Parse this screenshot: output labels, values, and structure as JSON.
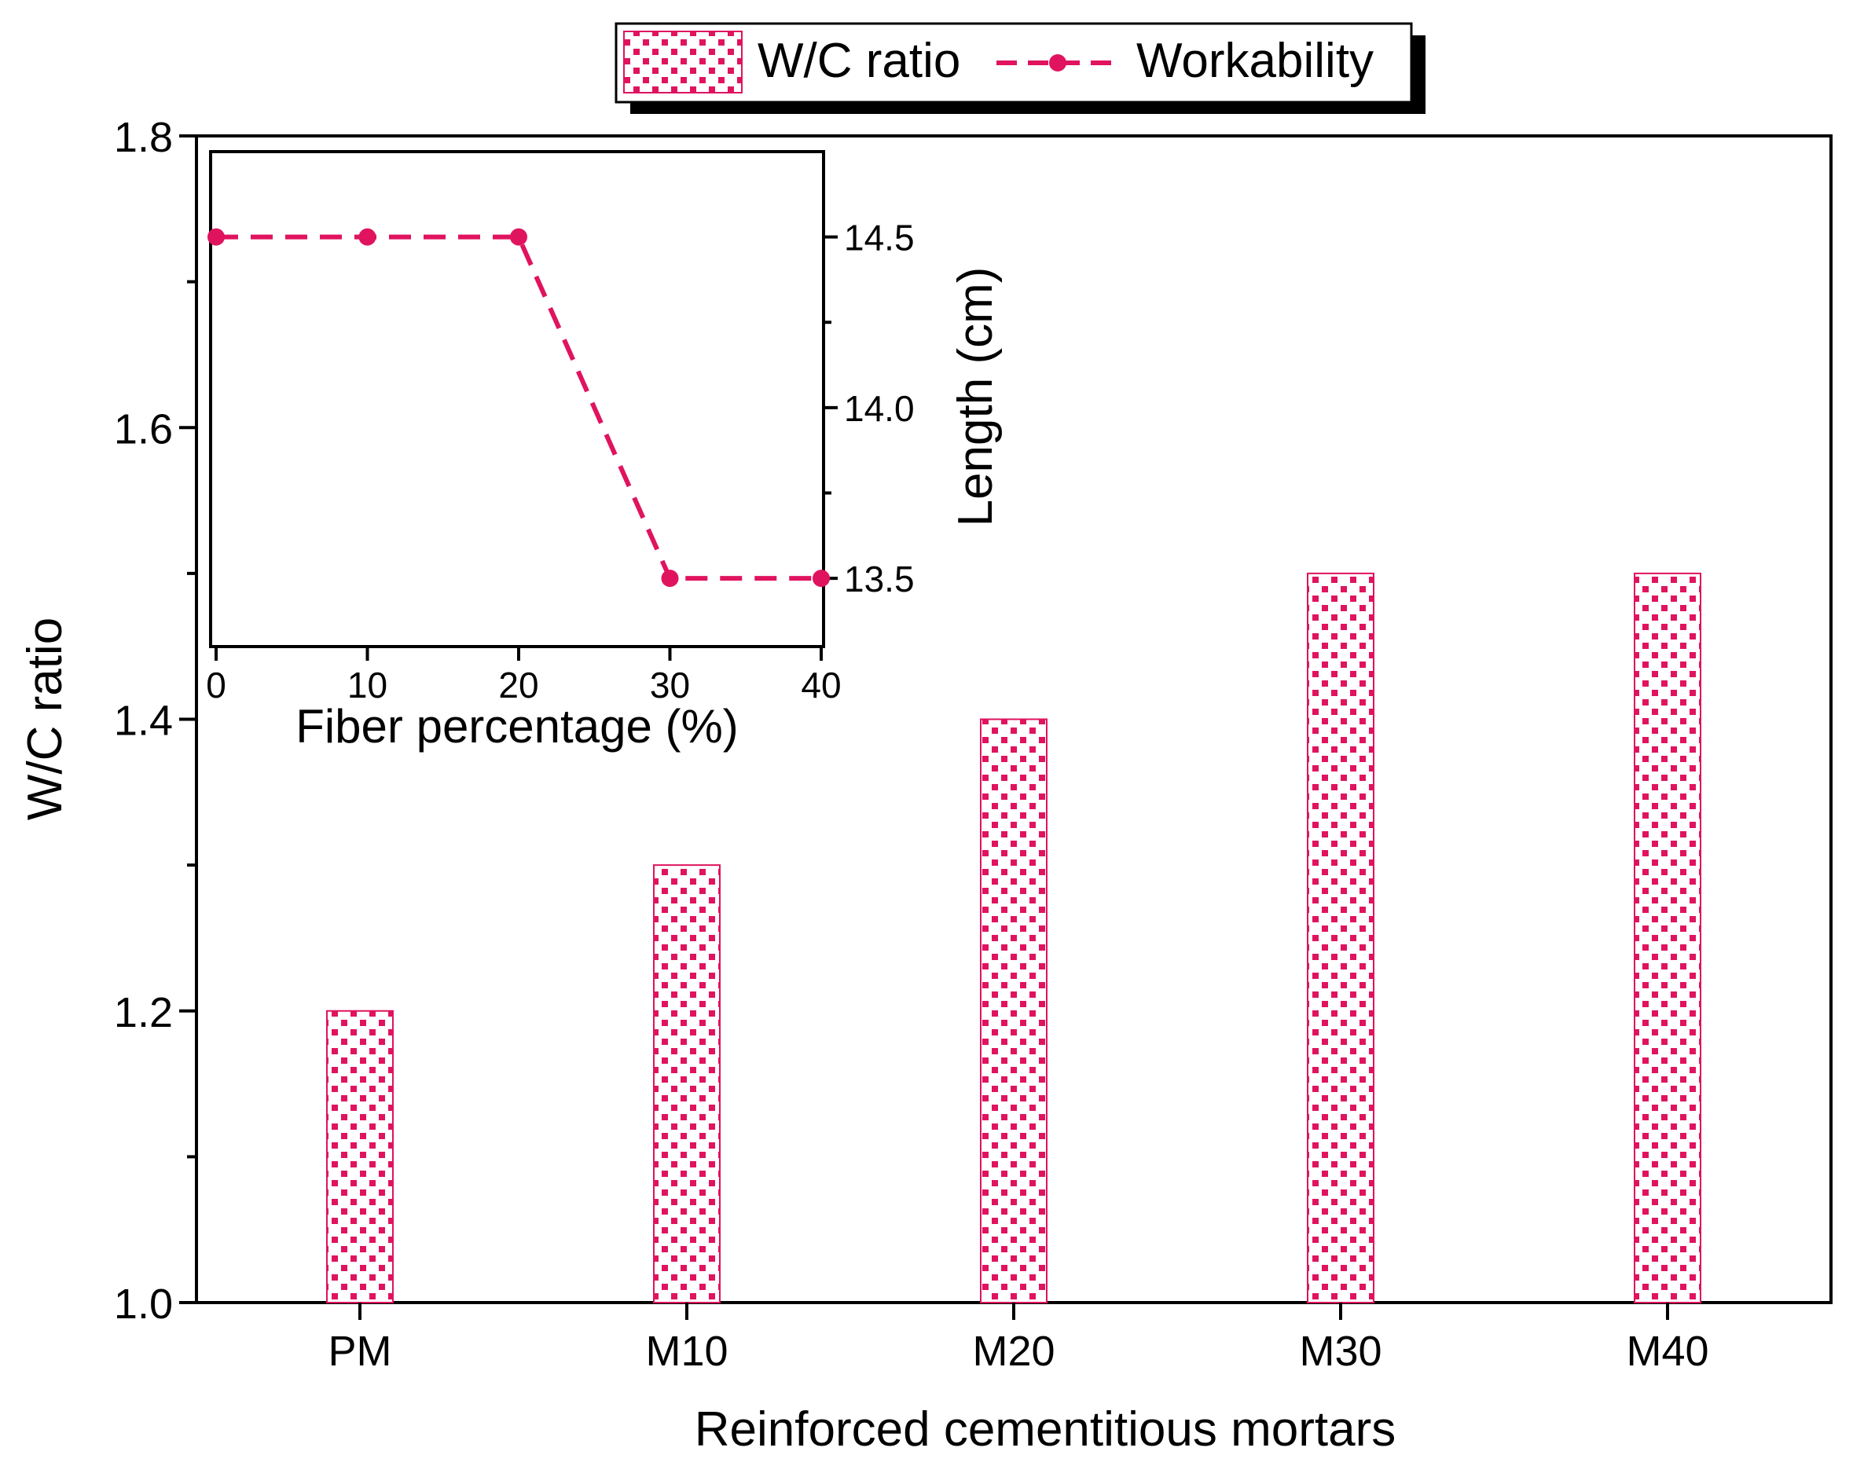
{
  "chart_data": [
    {
      "type": "bar",
      "categories": [
        "PM",
        "M10",
        "M20",
        "M30",
        "M40"
      ],
      "values": [
        1.2,
        1.3,
        1.4,
        1.5,
        1.5
      ],
      "series_name": "W/C ratio",
      "title": "",
      "xlabel": "Reinforced cementitious mortars",
      "ylabel": "W/C ratio",
      "ylim": [
        1.0,
        1.8
      ],
      "yticks": [
        "1.0",
        "1.2",
        "1.4",
        "1.6",
        "1.8"
      ],
      "ytick_values": [
        1.0,
        1.2,
        1.4,
        1.6,
        1.8
      ],
      "color": "#e0135f",
      "grid": false,
      "legend_position": "top-center"
    },
    {
      "type": "line",
      "series_name": "Workability",
      "x": [
        0,
        10,
        20,
        30,
        40
      ],
      "y": [
        14.5,
        14.5,
        14.5,
        13.5,
        13.5
      ],
      "xlabel": "Fiber percentage (%)",
      "ylabel": "Length (cm)",
      "xlim": [
        0,
        40
      ],
      "ylim": [
        13.3,
        14.75
      ],
      "xticks": [
        "0",
        "10",
        "20",
        "30",
        "40"
      ],
      "xtick_values": [
        0,
        10,
        20,
        30,
        40
      ],
      "yticks": [
        "13.5",
        "14.0",
        "14.5"
      ],
      "ytick_values": [
        13.5,
        14.0,
        14.5
      ],
      "color": "#e0135f",
      "line_style": "dashed",
      "marker": "circle",
      "placement": "inset top-left, right y-axis"
    }
  ],
  "legend": {
    "items": [
      {
        "label": "W/C ratio",
        "kind": "hatched-bar"
      },
      {
        "label": "Workability",
        "kind": "dashed-line-marker"
      }
    ]
  }
}
